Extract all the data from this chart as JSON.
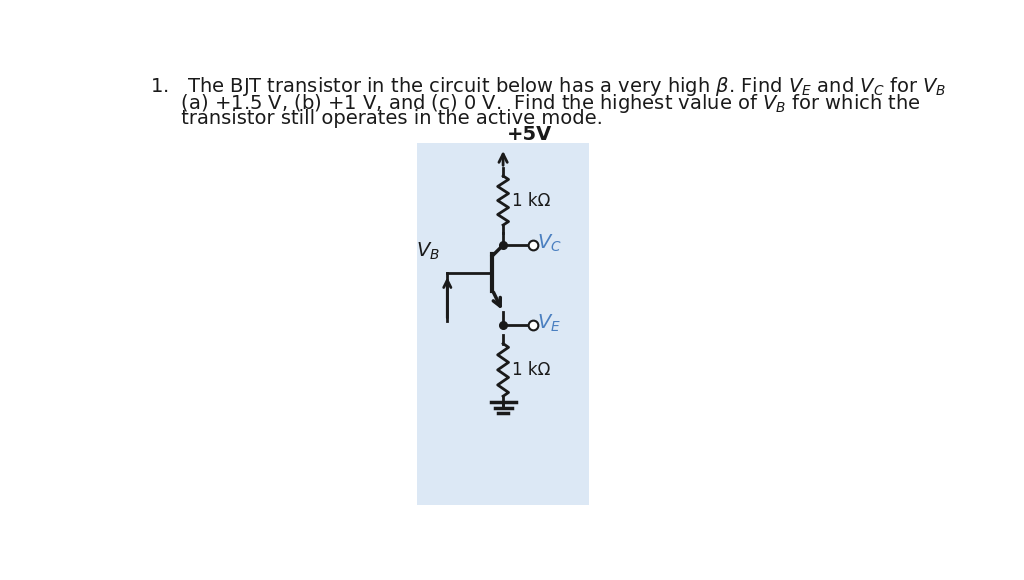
{
  "background_color": "#ffffff",
  "circuit_bg_color": "#dce8f5",
  "supply_label": "+5V",
  "res1_label": "1 kΩ",
  "res2_label": "1 kΩ",
  "blue_color": "#4a7fc0",
  "black_color": "#1a1a1a",
  "line_width": 2.0,
  "font_size_main": 14,
  "font_size_circuit": 12,
  "font_size_supply": 13
}
